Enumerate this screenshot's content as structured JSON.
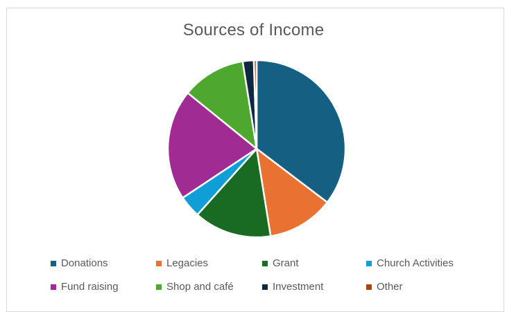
{
  "chart_data": {
    "type": "pie",
    "title": "Sources of Income",
    "categories": [
      "Donations",
      "Legacies",
      "Grant",
      "Church Activities",
      "Fund raising",
      "Shop and café",
      "Investment",
      "Other"
    ],
    "values": [
      35,
      12,
      14,
      4,
      20,
      11.5,
      2,
      0.5
    ],
    "colors": [
      "#156082",
      "#e97132",
      "#196b24",
      "#0f9ed5",
      "#a02b93",
      "#4ea72e",
      "#0e2841",
      "#a5470d"
    ],
    "start_angle_deg": 0,
    "direction": "clockwise",
    "legend_position": "bottom"
  }
}
